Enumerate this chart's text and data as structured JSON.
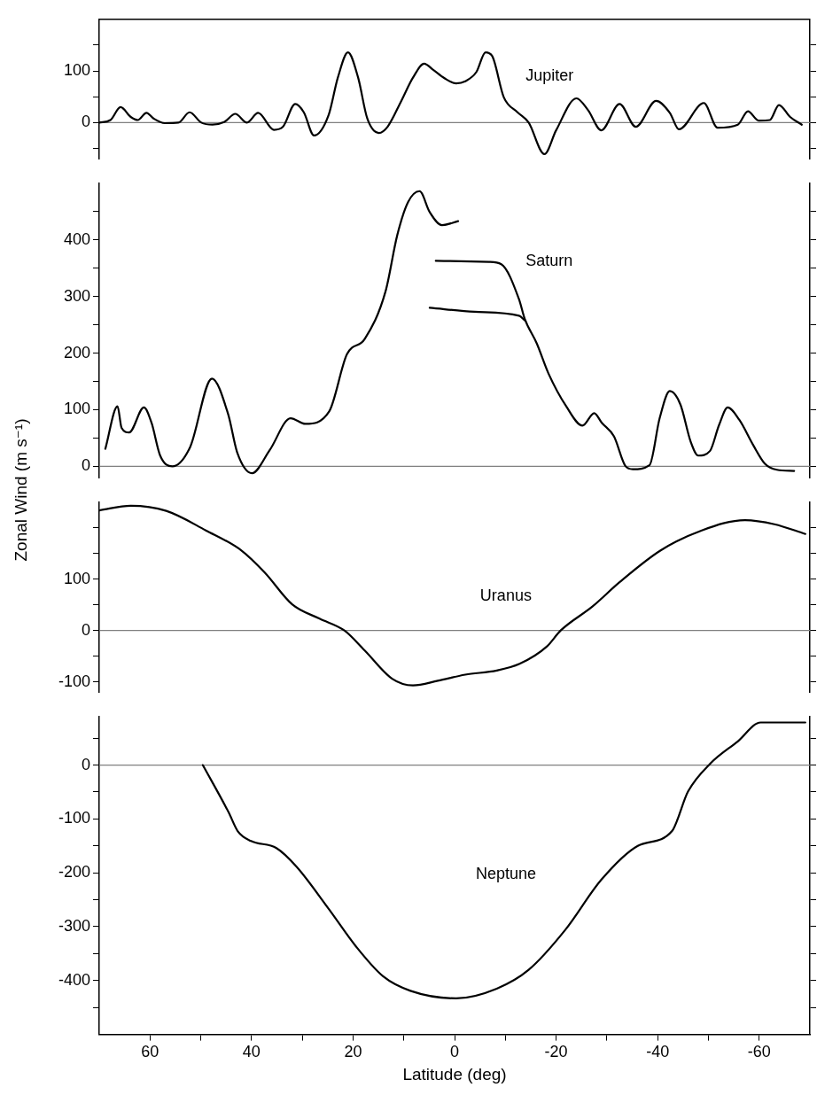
{
  "chart_data": [
    {
      "type": "line",
      "xlim": [
        70,
        -70
      ],
      "ylim": [
        -70,
        200
      ],
      "yticks": [
        {
          "value": -50,
          "label": null
        },
        0,
        {
          "value": 50,
          "label": null
        },
        100,
        {
          "value": 150,
          "label": null
        }
      ],
      "tick_labels": "y",
      "grid": false,
      "legend": false,
      "marker": "none",
      "line_style": "solid",
      "ref_lines": [
        {
          "axis": "y",
          "value": 0,
          "color": "#808080"
        }
      ],
      "series": [
        {
          "name": "Jupiter",
          "color": "#000000",
          "x": [
            70,
            67.8,
            65.8,
            63.8,
            62.4,
            60.7,
            59.3,
            57.1,
            54.4,
            52.2,
            49.9,
            47.7,
            45.4,
            43.2,
            40.9,
            38.7,
            35.6,
            33.8,
            31.4,
            29.7,
            27.7,
            24.8,
            23.0,
            21.0,
            19.0,
            17.2,
            14.9,
            13.2,
            10.5,
            8.2,
            6.0,
            4.2,
            2.0,
            -0.3,
            -2.1,
            -4.3,
            -6.1,
            -7.4,
            -9.7,
            -12.4,
            -14.6,
            -17.7,
            -20.0,
            -24.0,
            -26.3,
            -28.9,
            -32.5,
            -35.7,
            -39.7,
            -42.4,
            -44.2,
            -49.1,
            -51.8,
            -55.8,
            -57.8,
            -59.9,
            -62.1,
            -63.9,
            -66.1,
            -68.4
          ],
          "values": [
            0,
            5,
            30,
            11,
            5,
            19,
            8,
            -1,
            0,
            20,
            0,
            -4,
            1,
            17,
            0,
            19,
            -14,
            -8,
            36,
            20,
            -25,
            15,
            87,
            136,
            87,
            8,
            -20,
            -8,
            42,
            87,
            114,
            102,
            86,
            76,
            80,
            98,
            136,
            129,
            49,
            20,
            0,
            -61,
            -15,
            47,
            24,
            -15,
            36,
            -8,
            42,
            19,
            -13,
            38,
            -10,
            -4,
            22,
            4,
            5,
            34,
            11,
            -4
          ]
        }
      ]
    },
    {
      "type": "line",
      "xlim": [
        70,
        -70
      ],
      "ylim": [
        -20,
        500
      ],
      "yticks": [
        0,
        {
          "value": 50,
          "label": null
        },
        100,
        {
          "value": 150,
          "label": null
        },
        200,
        {
          "value": 250,
          "label": null
        },
        300,
        {
          "value": 350,
          "label": null
        },
        400,
        {
          "value": 450,
          "label": null
        }
      ],
      "tick_labels": "y",
      "grid": false,
      "legend": false,
      "marker": "none",
      "line_style": "solid",
      "ylabel": "Zonal Wind (m s⁻¹)",
      "ref_lines": [
        {
          "axis": "y",
          "value": 0,
          "color": "#808080"
        }
      ],
      "series": [
        {
          "name": "Saturn",
          "color": "#000000",
          "x": [
            68.8,
            66.4,
            65.6,
            64.1,
            61.2,
            59.7,
            58.0,
            55.6,
            52.1,
            47.8,
            44.6,
            42.8,
            39.9,
            36.4,
            32.3,
            29.4,
            24.7,
            21.2,
            17.7,
            13.6,
            11.3,
            9.2,
            6.9,
            4.9,
            2.5,
            -0.7
          ],
          "values": [
            31,
            106,
            68,
            60,
            104,
            77,
            19,
            0,
            34,
            155,
            92,
            24,
            -12,
            29,
            85,
            75,
            97,
            198,
            225,
            309,
            408,
            466,
            486,
            449,
            426,
            433
          ]
        },
        {
          "color": "#000000",
          "x": [
            3.7,
            -6.8,
            -9.2,
            -12.7,
            -13.8,
            -16.2,
            -18.5,
            -22.0,
            -25.2,
            -27.5,
            -29.0,
            -31.4,
            -33.7,
            -35.1,
            -38.4,
            -40.4,
            -42.4,
            -44.5,
            -46.5,
            -48.0,
            -50.3,
            -52.1,
            -53.8,
            -56.1,
            -58.8,
            -61.1,
            -63.5,
            -66.9
          ],
          "values": [
            363,
            361,
            357,
            295,
            261,
            217,
            164,
            106,
            72,
            94,
            77,
            53,
            0,
            -5,
            2,
            85,
            133,
            109,
            44,
            19,
            27,
            73,
            104,
            82,
            38,
            5,
            -6,
            -8
          ]
        },
        {
          "color": "#000000",
          "x": [
            4.9,
            -3.9,
            -12.7,
            -13.8
          ],
          "values": [
            280,
            273,
            266,
            258
          ]
        }
      ]
    },
    {
      "type": "line",
      "xlim": [
        70,
        -70
      ],
      "ylim": [
        -120,
        250
      ],
      "yticks": [
        -100,
        {
          "value": -50,
          "label": null
        },
        0,
        {
          "value": 50,
          "label": null
        },
        100,
        {
          "value": 150,
          "label": null
        },
        {
          "value": 200,
          "label": null
        }
      ],
      "tick_labels": "y",
      "grid": false,
      "legend": false,
      "marker": "none",
      "line_style": "solid",
      "ref_lines": [
        {
          "axis": "y",
          "value": 0,
          "color": "#808080"
        }
      ],
      "series": [
        {
          "name": "Uranus",
          "color": "#000000",
          "x": [
            70,
            63.8,
            56.8,
            49.0,
            42.0,
            37.4,
            32.0,
            26.6,
            21.7,
            17.7,
            12.3,
            8.2,
            3.3,
            -2.1,
            -8.3,
            -12.8,
            -18.2,
            -20.9,
            -27.2,
            -32.5,
            -40.6,
            -48.7,
            -57.2,
            -63.0,
            -69.1
          ],
          "values": [
            234,
            243,
            233,
            195,
            156,
            113,
            51,
            23,
            0,
            -39,
            -94,
            -107,
            -98,
            -86,
            -78,
            -65,
            -31,
            0,
            47,
            94,
            156,
            195,
            215,
            207,
            188
          ]
        }
      ]
    },
    {
      "type": "line",
      "xlim": [
        70,
        -70
      ],
      "ylim": [
        -500,
        90
      ],
      "xticks": [
        60,
        {
          "value": 50,
          "label": null
        },
        40,
        {
          "value": 30,
          "label": null
        },
        20,
        {
          "value": 10,
          "label": null
        },
        0,
        {
          "value": -10,
          "label": null
        },
        -20,
        {
          "value": -30,
          "label": null
        },
        -40,
        {
          "value": -50,
          "label": null
        },
        -60
      ],
      "yticks": [
        {
          "value": -450,
          "label": null
        },
        -400,
        {
          "value": -350,
          "label": null
        },
        -300,
        {
          "value": -250,
          "label": null
        },
        -200,
        {
          "value": -150,
          "label": null
        },
        -100,
        {
          "value": -50,
          "label": null
        },
        0,
        {
          "value": 50,
          "label": null
        }
      ],
      "xlabel": "Latitude (deg)",
      "grid": false,
      "legend": false,
      "marker": "none",
      "line_style": "solid",
      "ref_lines": [
        {
          "axis": "y",
          "value": 0,
          "color": "#808080"
        }
      ],
      "series": [
        {
          "name": "Neptune",
          "color": "#000000",
          "x": [
            49.6,
            44.5,
            42.7,
            40.1,
            35.1,
            31.1,
            24.8,
            19.4,
            14.1,
            8.7,
            -0.3,
            -8.3,
            -14.6,
            -21.8,
            -28.9,
            -36.1,
            -42.8,
            -46.0,
            -50.4,
            -55.8,
            -60.3,
            -69.1
          ],
          "values": [
            0,
            -88,
            -123,
            -141,
            -154,
            -189,
            -267,
            -337,
            -392,
            -419,
            -433,
            -415,
            -380,
            -306,
            -213,
            -150,
            -123,
            -49,
            3,
            44,
            79,
            79
          ]
        }
      ]
    }
  ]
}
